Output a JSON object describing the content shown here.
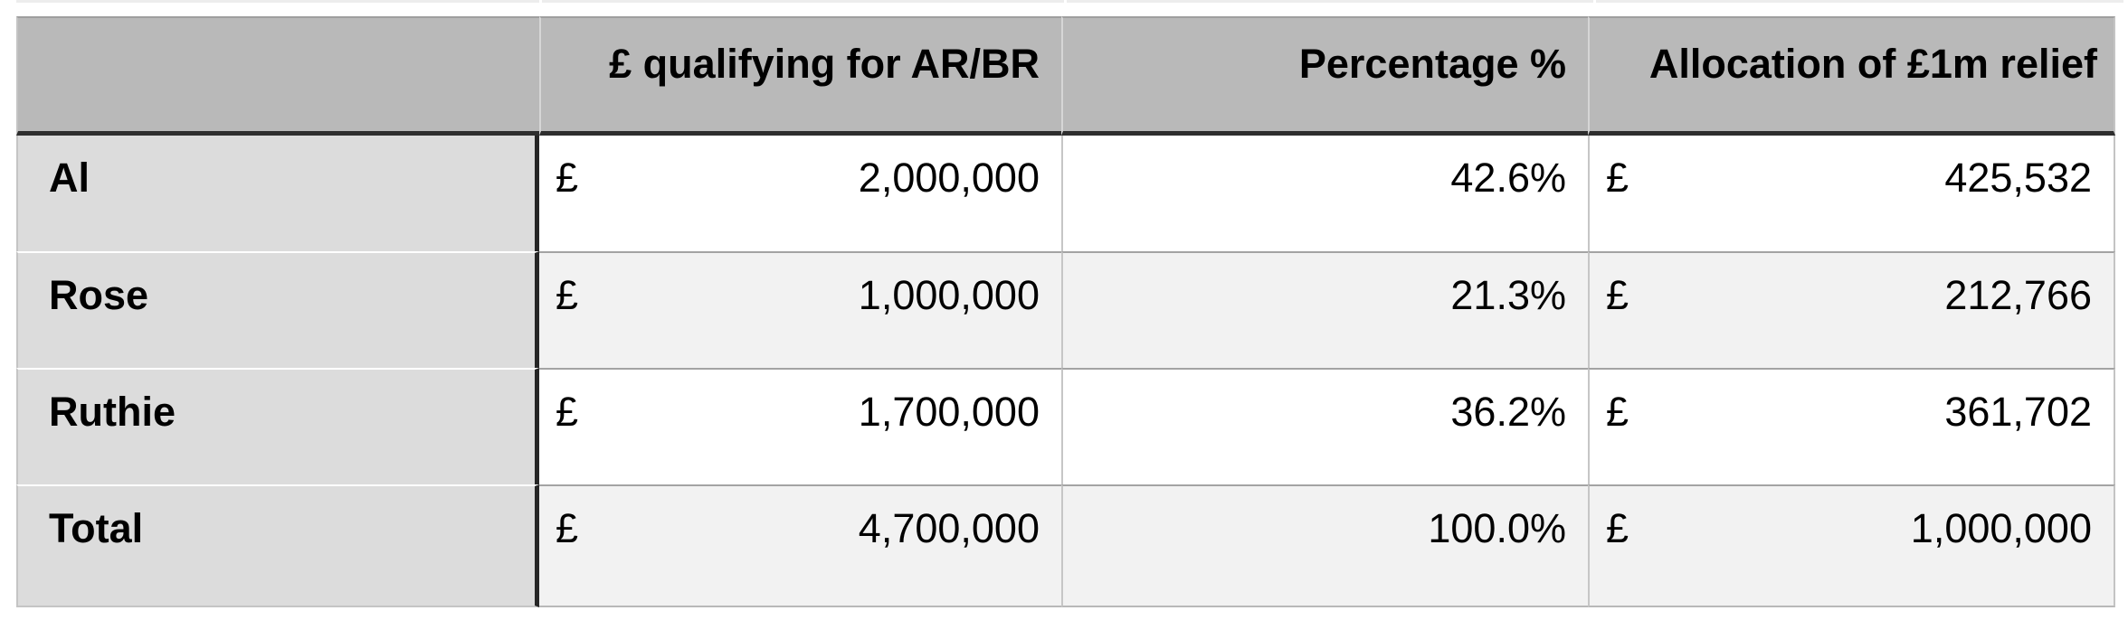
{
  "colors": {
    "page-bg": "#ffffff",
    "text": "#000000",
    "header-bg": "#b9b9b9",
    "rowheader-bg": "#dcdcdc",
    "row-bg": "#ffffff",
    "row-alt-bg": "#f2f2f2",
    "dark-divider": "#262626",
    "header-underline": "#2e2e2e",
    "header-cell-divider": "#d6d6d6",
    "light-divider": "#c6c6c6",
    "row-separator": "#a3a3a3",
    "outer-border": "#c4c4c4",
    "outer-top": "#9e9e9e",
    "outer-bottom": "#b8b8b8",
    "top-sliver": "#ededed"
  },
  "table": {
    "currency_symbol": "£",
    "headers": [
      "",
      "£ qualifying for AR/BR",
      "Percentage %",
      "Allocation of £1m relief"
    ],
    "rows": [
      {
        "label": "Al",
        "qualifying": "2,000,000",
        "percentage": "42.6%",
        "allocation": "425,532"
      },
      {
        "label": "Rose",
        "qualifying": "1,000,000",
        "percentage": "21.3%",
        "allocation": "212,766"
      },
      {
        "label": "Ruthie",
        "qualifying": "1,700,000",
        "percentage": "36.2%",
        "allocation": "361,702"
      },
      {
        "label": "Total",
        "qualifying": "4,700,000",
        "percentage": "100.0%",
        "allocation": "1,000,000"
      }
    ]
  }
}
